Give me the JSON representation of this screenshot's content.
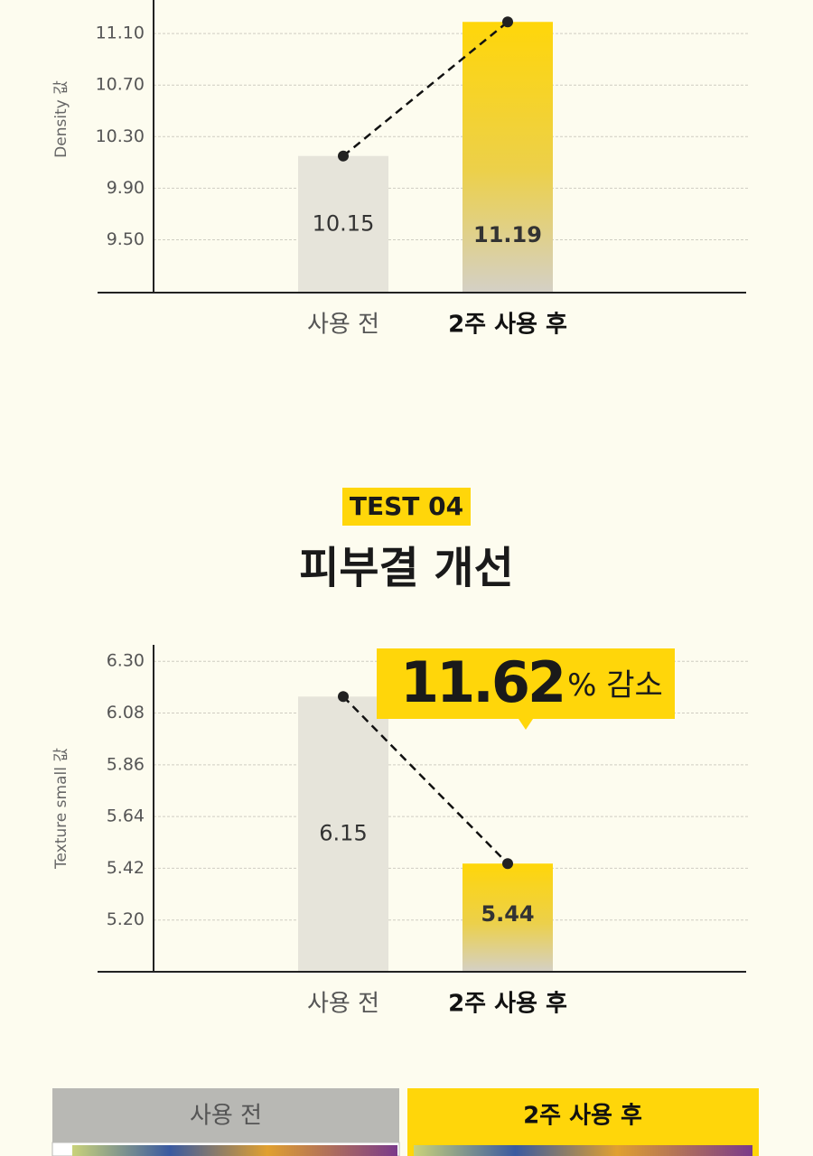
{
  "chart_data": [
    {
      "type": "bar",
      "y_label": "Density 값",
      "categories": [
        "사용 전",
        "2주 사용 후"
      ],
      "values": [
        10.15,
        11.19
      ],
      "colors": [
        "#e6e4da",
        "#ffd60a"
      ],
      "ylim": [
        9.09,
        11.36
      ],
      "yticks": [
        {
          "value": 9.5,
          "label": "9.50"
        },
        {
          "value": 9.9,
          "label": "9.90"
        },
        {
          "value": 10.3,
          "label": "10.30"
        },
        {
          "value": 10.7,
          "label": "10.70"
        },
        {
          "value": 11.1,
          "label": "11.10"
        }
      ],
      "grid": true
    },
    {
      "type": "bar",
      "y_label": "Texture small 값",
      "categories": [
        "사용 전",
        "2주 사용 후"
      ],
      "values": [
        6.15,
        5.44
      ],
      "colors": [
        "#e6e4da",
        "#ffd60a"
      ],
      "ylim": [
        4.98,
        6.37
      ],
      "yticks": [
        {
          "value": 5.2,
          "label": "5.20"
        },
        5.42,
        5.64,
        5.86,
        6.08,
        {
          "value": 6.3,
          "label": "6.30"
        }
      ],
      "grid": true,
      "annotation": {
        "value": 11.62,
        "label": "% 감소"
      }
    }
  ],
  "section": {
    "badge": "TEST 04",
    "title": "피부결 개선"
  },
  "comparison": {
    "labels": [
      "사용 전",
      "2주 사용 후"
    ]
  }
}
